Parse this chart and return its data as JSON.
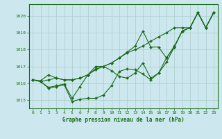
{
  "background_color": "#cce8ee",
  "grid_color": "#aacccc",
  "line_color": "#1a6b1a",
  "title": "Graphe pression niveau de la mer (hPa)",
  "xlim": [
    -0.5,
    23.5
  ],
  "ylim": [
    1014.5,
    1020.7
  ],
  "yticks": [
    1015,
    1016,
    1017,
    1018,
    1019,
    1020
  ],
  "xticks": [
    0,
    1,
    2,
    3,
    4,
    5,
    6,
    7,
    8,
    9,
    10,
    11,
    12,
    13,
    14,
    15,
    16,
    17,
    18,
    19,
    20,
    21,
    22,
    23
  ],
  "l1x": [
    0,
    1,
    2,
    3,
    4,
    5,
    6,
    7,
    8,
    9,
    10,
    11,
    12,
    13,
    14,
    15,
    16,
    17,
    18,
    19,
    20,
    21,
    22,
    23
  ],
  "l1y": [
    1016.2,
    1016.1,
    1015.7,
    1015.8,
    1015.9,
    1014.9,
    1015.05,
    1015.1,
    1015.1,
    1015.3,
    1015.85,
    1016.7,
    1016.85,
    1016.8,
    1016.55,
    1016.2,
    1016.6,
    1017.5,
    1018.15,
    1019.1,
    1019.3,
    1020.2,
    1019.3,
    1020.2
  ],
  "l2x": [
    0,
    1,
    2,
    3,
    4,
    5,
    6,
    7,
    8,
    9,
    10,
    11,
    12,
    13,
    14,
    15,
    16,
    17,
    18,
    19,
    20,
    21,
    22,
    23
  ],
  "l2y": [
    1016.2,
    1016.1,
    1015.75,
    1015.85,
    1015.95,
    1015.1,
    1015.8,
    1016.5,
    1017.0,
    1017.0,
    1016.75,
    1016.4,
    1016.3,
    1016.6,
    1017.2,
    1016.3,
    1016.6,
    1017.25,
    1018.15,
    1019.1,
    1019.3,
    1020.2,
    1019.3,
    1020.2
  ],
  "l3x": [
    0,
    1,
    2,
    3,
    4,
    5,
    6,
    7,
    8,
    9,
    10,
    11,
    12,
    13,
    14,
    15,
    16,
    17,
    18,
    19,
    20,
    21,
    22,
    23
  ],
  "l3y": [
    1016.2,
    1016.15,
    1016.5,
    1016.3,
    1016.2,
    1016.2,
    1016.3,
    1016.5,
    1016.85,
    1017.0,
    1017.2,
    1017.5,
    1017.85,
    1018.2,
    1019.1,
    1018.15,
    1018.15,
    1017.5,
    1018.2,
    1019.1,
    1019.3,
    1020.2,
    1019.3,
    1020.2
  ],
  "l4x": [
    0,
    1,
    2,
    3,
    4,
    5,
    6,
    7,
    8,
    9,
    10,
    11,
    12,
    13,
    14,
    15,
    16,
    17,
    18,
    19,
    20,
    21,
    22,
    23
  ],
  "l4y": [
    1016.2,
    1016.1,
    1016.2,
    1016.3,
    1016.2,
    1016.2,
    1016.3,
    1016.5,
    1016.8,
    1017.0,
    1017.2,
    1017.5,
    1017.8,
    1018.0,
    1018.2,
    1018.5,
    1018.75,
    1019.0,
    1019.3,
    1019.3,
    1019.3,
    1020.2,
    1019.3,
    1020.2
  ],
  "title_fontsize": 5.5,
  "tick_fontsize": 4.5,
  "linewidth": 0.8,
  "markersize": 2.0
}
